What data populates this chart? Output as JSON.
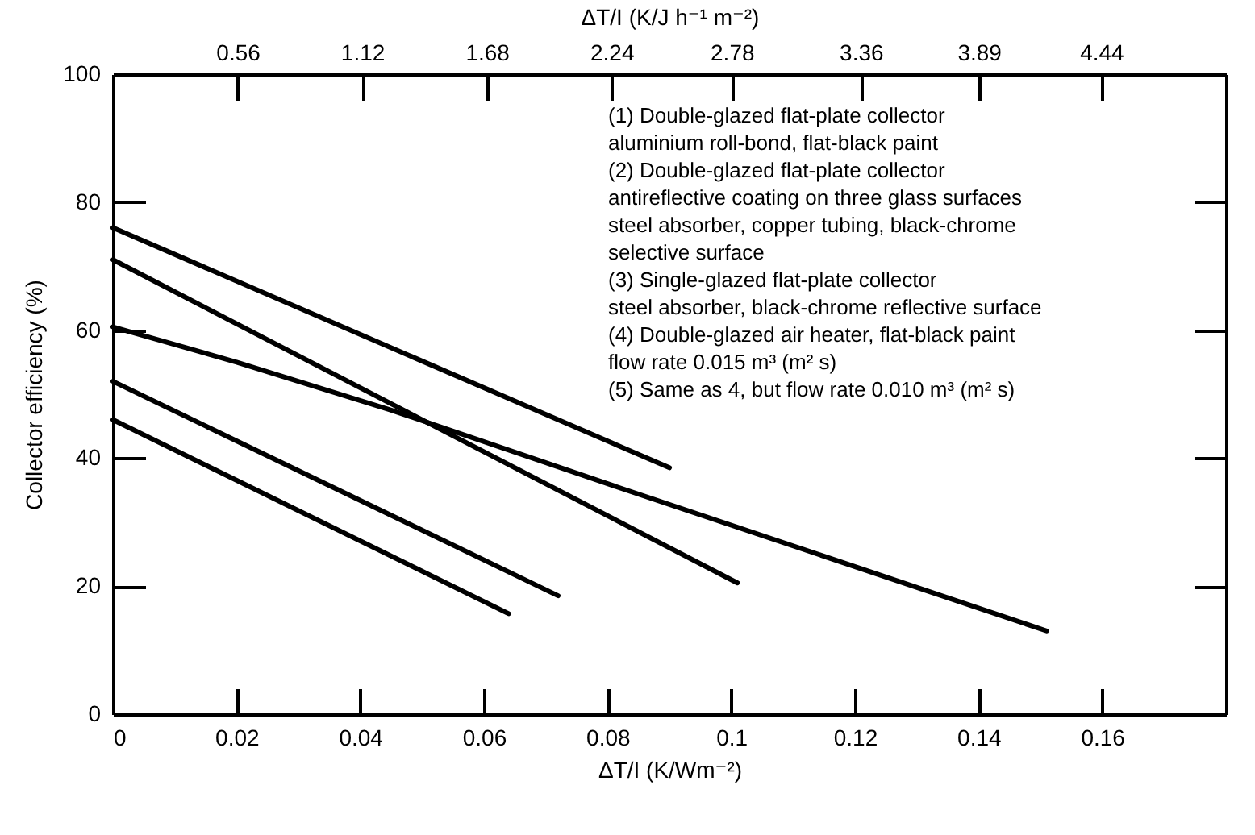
{
  "chart_data": {
    "type": "line",
    "xlabel": "ΔT/I (K/Wm⁻²)",
    "ylabel": "Collector efficiency (%)",
    "x2label": "ΔT/I (K/J h⁻¹ m⁻²)",
    "xlim": [
      0,
      0.18
    ],
    "xticks": [
      0,
      0.02,
      0.04,
      0.06,
      0.08,
      0.1,
      0.12,
      0.14,
      0.16
    ],
    "x2lim": [
      0,
      5.0
    ],
    "x2ticks": [
      0.56,
      1.12,
      1.68,
      2.24,
      2.78,
      3.36,
      3.89,
      4.44
    ],
    "ylim": [
      0,
      100
    ],
    "yticks": [
      0,
      20,
      40,
      60,
      80,
      100
    ],
    "grid": false,
    "legend": false,
    "marker": "none",
    "line_style": "solid",
    "series": [
      {
        "color": "#000000",
        "x": [
          0,
          0.09
        ],
        "values": [
          76,
          38.5
        ]
      },
      {
        "color": "#000000",
        "x": [
          0,
          0.101
        ],
        "values": [
          71,
          20.5
        ]
      },
      {
        "color": "#000000",
        "x": [
          0,
          0.02,
          0.045,
          0.08,
          0.151
        ],
        "values": [
          60.5,
          55,
          47.5,
          36,
          13
        ]
      },
      {
        "color": "#000000",
        "x": [
          0,
          0.072
        ],
        "values": [
          52,
          18.5
        ]
      },
      {
        "color": "#000000",
        "x": [
          0,
          0.064
        ],
        "values": [
          46,
          15.7
        ]
      }
    ],
    "annotations": [
      "(1) Double-glazed flat-plate collector\n      aluminium roll-bond, flat-black paint",
      "(2) Double-glazed flat-plate collector\n      antireflective coating on three glass surfaces\n      steel absorber, copper tubing, black-chrome\n      selective surface",
      "(3) Single-glazed flat-plate collector\n      steel absorber, black-chrome reflective surface",
      "(4) Double-glazed air heater, flat-black paint\n      flow rate 0.015 m³ (m² s)",
      "(5) Same as 4, but flow rate 0.010 m³ (m² s)"
    ]
  }
}
